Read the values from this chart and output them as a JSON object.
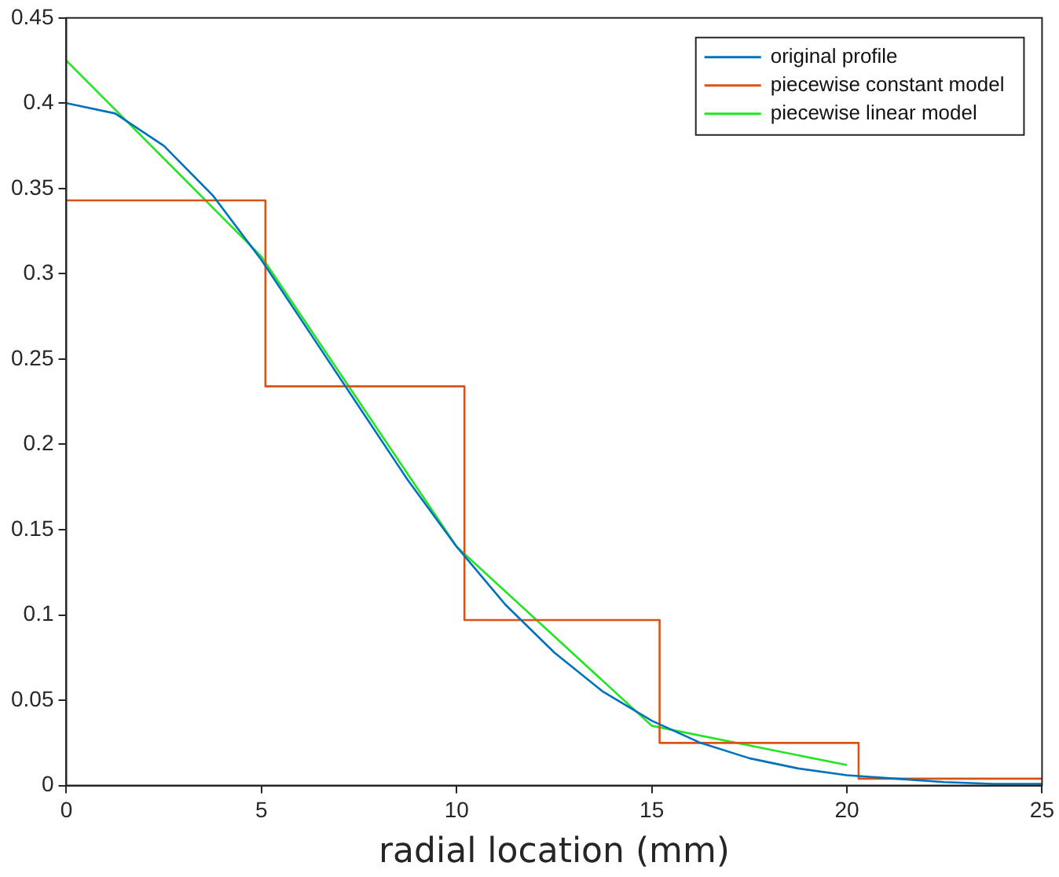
{
  "chart_data": {
    "type": "line",
    "xlabel": "radial location (mm)",
    "xlim": [
      0,
      25
    ],
    "xticks": [
      0,
      5,
      10,
      15,
      20,
      25
    ],
    "ylim": [
      0,
      0.45
    ],
    "yticks": [
      0,
      0.05,
      0.1,
      0.15,
      0.2,
      0.25,
      0.3,
      0.35,
      0.4,
      0.45
    ],
    "grid": false,
    "legend": "top right",
    "marker": "none",
    "series": [
      {
        "name": "original profile",
        "color": "#0072bd",
        "type": "line",
        "x": [
          0,
          1.25,
          2.5,
          3.75,
          5,
          6.25,
          7.5,
          8.75,
          10,
          11.25,
          12.5,
          13.75,
          15,
          16.25,
          17.5,
          18.75,
          20,
          21.25,
          22.5,
          23.75,
          25
        ],
        "values": [
          0.4,
          0.394,
          0.375,
          0.346,
          0.308,
          0.265,
          0.222,
          0.179,
          0.14,
          0.106,
          0.078,
          0.055,
          0.038,
          0.025,
          0.016,
          0.01,
          0.006,
          0.004,
          0.002,
          0.001,
          0.001
        ]
      },
      {
        "name": "piecewise constant model",
        "color": "#d95319",
        "type": "step",
        "x": [
          0,
          5.1,
          10.2,
          15.2,
          20.3,
          25
        ],
        "values": [
          0.343,
          0.234,
          0.097,
          0.025,
          0.004,
          0.004
        ]
      },
      {
        "name": "piecewise linear model",
        "color": "#22e622",
        "type": "line",
        "x": [
          0,
          5,
          10,
          15,
          20
        ],
        "values": [
          0.425,
          0.31,
          0.14,
          0.035,
          0.012
        ]
      }
    ]
  }
}
